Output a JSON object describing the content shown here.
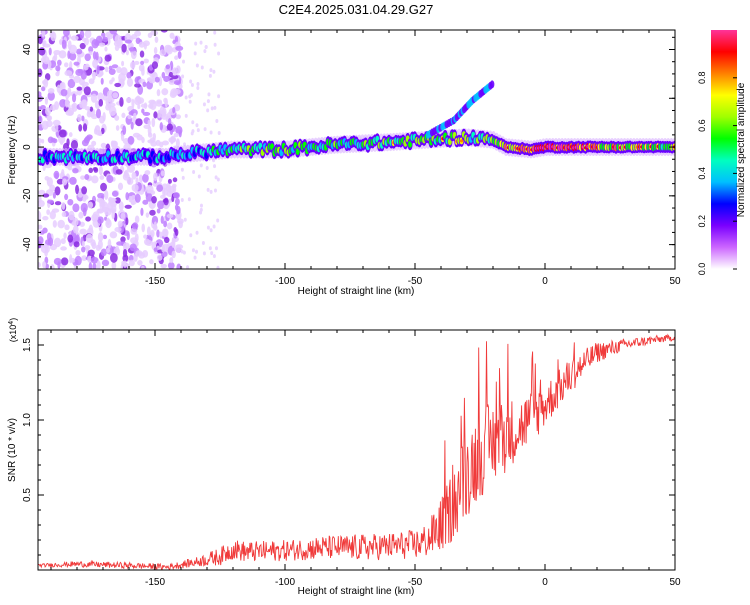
{
  "title": "C2E4.2025.031.04.29.G27",
  "colors": {
    "snr_line": "#f03a3a",
    "axis": "#000000",
    "background": "#ffffff",
    "colorbar": [
      "#ffffff",
      "#cc66ff",
      "#7a00ff",
      "#0000ff",
      "#00bfff",
      "#00ffbf",
      "#00ff00",
      "#a0ff00",
      "#ffff00",
      "#ff8000",
      "#ff0000",
      "#ff3399"
    ]
  },
  "colorbar": {
    "label": "Normalized spectral amplitude",
    "range": [
      0,
      1
    ],
    "ticks": [
      "0.0",
      "0.2",
      "0.4",
      "0.6",
      "0.8"
    ],
    "tick_values": [
      0,
      0.2,
      0.4,
      0.6,
      0.8
    ]
  },
  "chart_data": [
    {
      "type": "heatmap",
      "xlabel": "Height of straight line (km)",
      "ylabel": "Frequency (Hz)",
      "xlim": [
        -195,
        50
      ],
      "ylim": [
        -50,
        48
      ],
      "x_ticks": [
        "-150",
        "-100",
        "-50",
        "0",
        "50"
      ],
      "x_tick_values": [
        -150,
        -100,
        -50,
        0,
        50
      ],
      "y_ticks": [
        "-40",
        "-20",
        "0",
        "20",
        "40"
      ],
      "y_tick_values": [
        -40,
        -20,
        0,
        20,
        40
      ],
      "colormap": "rainbow",
      "ridge": [
        {
          "x": -195,
          "y": -4,
          "amp": 0.35
        },
        {
          "x": -170,
          "y": -4,
          "amp": 0.35
        },
        {
          "x": -145,
          "y": -4,
          "amp": 0.35
        },
        {
          "x": -140,
          "y": -3,
          "amp": 0.4
        },
        {
          "x": -130,
          "y": -2,
          "amp": 0.45
        },
        {
          "x": -120,
          "y": -1,
          "amp": 0.45
        },
        {
          "x": -100,
          "y": -1,
          "amp": 0.5
        },
        {
          "x": -80,
          "y": 1,
          "amp": 0.5
        },
        {
          "x": -60,
          "y": 2,
          "amp": 0.55
        },
        {
          "x": -45,
          "y": 3,
          "amp": 0.6
        },
        {
          "x": -30,
          "y": 4,
          "amp": 0.55
        },
        {
          "x": -20,
          "y": 3,
          "amp": 0.5
        },
        {
          "x": -15,
          "y": 0,
          "amp": 0.8
        },
        {
          "x": -5,
          "y": -1,
          "amp": 0.8
        },
        {
          "x": 0,
          "y": 0,
          "amp": 0.9
        },
        {
          "x": 10,
          "y": 0,
          "amp": 0.85
        },
        {
          "x": 20,
          "y": 0,
          "amp": 0.7
        },
        {
          "x": 35,
          "y": 0,
          "amp": 0.65
        },
        {
          "x": 50,
          "y": 0,
          "amp": 0.6
        }
      ],
      "branch": [
        {
          "x": -45,
          "y": 5
        },
        {
          "x": -35,
          "y": 11
        },
        {
          "x": -28,
          "y": 19
        },
        {
          "x": -20,
          "y": 26
        }
      ]
    },
    {
      "type": "line",
      "xlabel": "Height of straight line (km)",
      "ylabel": "SNR (10 * v/v)",
      "y_multiplier": "(x10",
      "y_multiplier_exp": "4",
      "y_multiplier_close": ")",
      "xlim": [
        -195,
        50
      ],
      "ylim": [
        0,
        1.6
      ],
      "x_ticks": [
        "-150",
        "-100",
        "-50",
        "0",
        "50"
      ],
      "x_tick_values": [
        -150,
        -100,
        -50,
        0,
        50
      ],
      "y_ticks": [
        "0.5",
        "1.0",
        "1.5"
      ],
      "y_tick_values": [
        0.5,
        1.0,
        1.5
      ],
      "series": [
        {
          "x": [
            -195,
            -180,
            -160,
            -145,
            -135,
            -125,
            -120,
            -115,
            -100,
            -85,
            -70,
            -60,
            -50,
            -45,
            -40,
            -35,
            -30,
            -25,
            -20,
            -15,
            -10,
            -5,
            0,
            5,
            10,
            20,
            30,
            40,
            50
          ],
          "values": [
            0.03,
            0.04,
            0.03,
            0.02,
            0.05,
            0.09,
            0.14,
            0.12,
            0.13,
            0.15,
            0.15,
            0.16,
            0.17,
            0.2,
            0.3,
            0.45,
            0.65,
            0.78,
            0.85,
            0.9,
            0.95,
            1.02,
            1.1,
            1.2,
            1.3,
            1.45,
            1.5,
            1.53,
            1.55
          ],
          "noise": [
            0.01,
            0.02,
            0.02,
            0.02,
            0.03,
            0.06,
            0.07,
            0.07,
            0.07,
            0.08,
            0.09,
            0.09,
            0.1,
            0.12,
            0.18,
            0.25,
            0.3,
            0.3,
            0.28,
            0.25,
            0.2,
            0.18,
            0.15,
            0.13,
            0.12,
            0.07,
            0.04,
            0.03,
            0.02
          ]
        }
      ]
    }
  ]
}
